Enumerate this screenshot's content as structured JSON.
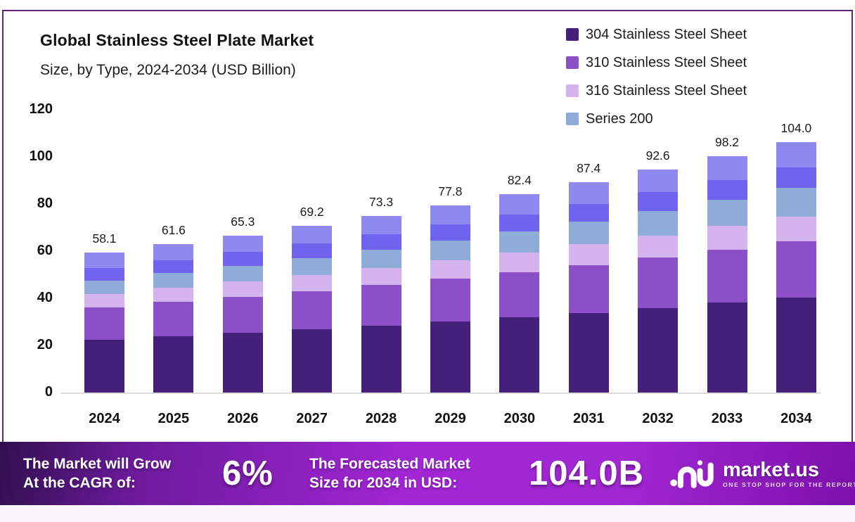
{
  "title": "Global Stainless Steel Plate Market",
  "subtitle": "Size, by Type, 2024-2034 (USD Billion)",
  "legend": {
    "items": [
      {
        "label": "304 Stainless Steel Sheet",
        "color": "#45207a"
      },
      {
        "label": "310 Stainless Steel Sheet",
        "color": "#8b50c8"
      },
      {
        "label": "316 Stainless Steel Sheet",
        "color": "#d5b3ee"
      },
      {
        "label": "Series 200",
        "color": "#8fabd7"
      }
    ]
  },
  "chart_data": {
    "type": "bar",
    "stacked": true,
    "title": "Global Stainless Steel Plate Market Size, by Type, 2024-2034 (USD Billion)",
    "categories": [
      "2024",
      "2025",
      "2026",
      "2027",
      "2028",
      "2029",
      "2030",
      "2031",
      "2032",
      "2033",
      "2034"
    ],
    "totals": [
      "58.1",
      "61.6",
      "65.3",
      "69.2",
      "73.3",
      "77.8",
      "82.4",
      "87.4",
      "92.6",
      "98.2",
      "104.0"
    ],
    "series": [
      {
        "name": "304 Stainless Steel Sheet",
        "color": "#45207a",
        "values": [
          22.0,
          23.4,
          24.8,
          26.3,
          27.9,
          29.6,
          31.3,
          33.2,
          35.2,
          37.3,
          39.5
        ]
      },
      {
        "name": "310 Stainless Steel Sheet",
        "color": "#8b50c8",
        "values": [
          13.5,
          14.3,
          15.1,
          15.9,
          16.8,
          17.8,
          18.8,
          19.8,
          20.9,
          22.1,
          23.3
        ]
      },
      {
        "name": "316 Stainless Steel Sheet",
        "color": "#d5b3ee",
        "values": [
          5.5,
          5.9,
          6.3,
          6.7,
          7.2,
          7.6,
          8.1,
          8.7,
          9.2,
          9.8,
          10.4
        ]
      },
      {
        "name": "Series 200",
        "color": "#8fabd7",
        "values": [
          5.6,
          6.0,
          6.5,
          7.0,
          7.5,
          8.1,
          8.7,
          9.4,
          10.1,
          10.9,
          11.8
        ]
      },
      {
        "name": "unlabeled-series-5",
        "color": "#6f63f0",
        "values": [
          5.2,
          5.5,
          5.8,
          6.1,
          6.4,
          6.7,
          7.1,
          7.4,
          7.8,
          8.2,
          8.6
        ]
      },
      {
        "name": "unlabeled-series-6",
        "color": "#8f88f0",
        "values": [
          6.3,
          6.5,
          6.8,
          7.2,
          7.5,
          8.0,
          8.4,
          8.9,
          9.4,
          9.9,
          10.4
        ]
      }
    ],
    "y_ticks": [
      0,
      20,
      40,
      60,
      80,
      100,
      120
    ],
    "ylim": [
      0,
      120
    ],
    "grid": false,
    "legend_position": "top-right"
  },
  "footer": {
    "cagr_line1": "The Market will Grow",
    "cagr_line2": "At the CAGR of:",
    "cagr_value": "6%",
    "forecast_line1": "The Forecasted Market",
    "forecast_line2": "Size for 2034 in USD:",
    "forecast_value": "104.0B",
    "brand_name": "market.us",
    "brand_tagline": "ONE STOP SHOP FOR THE REPORTS"
  }
}
